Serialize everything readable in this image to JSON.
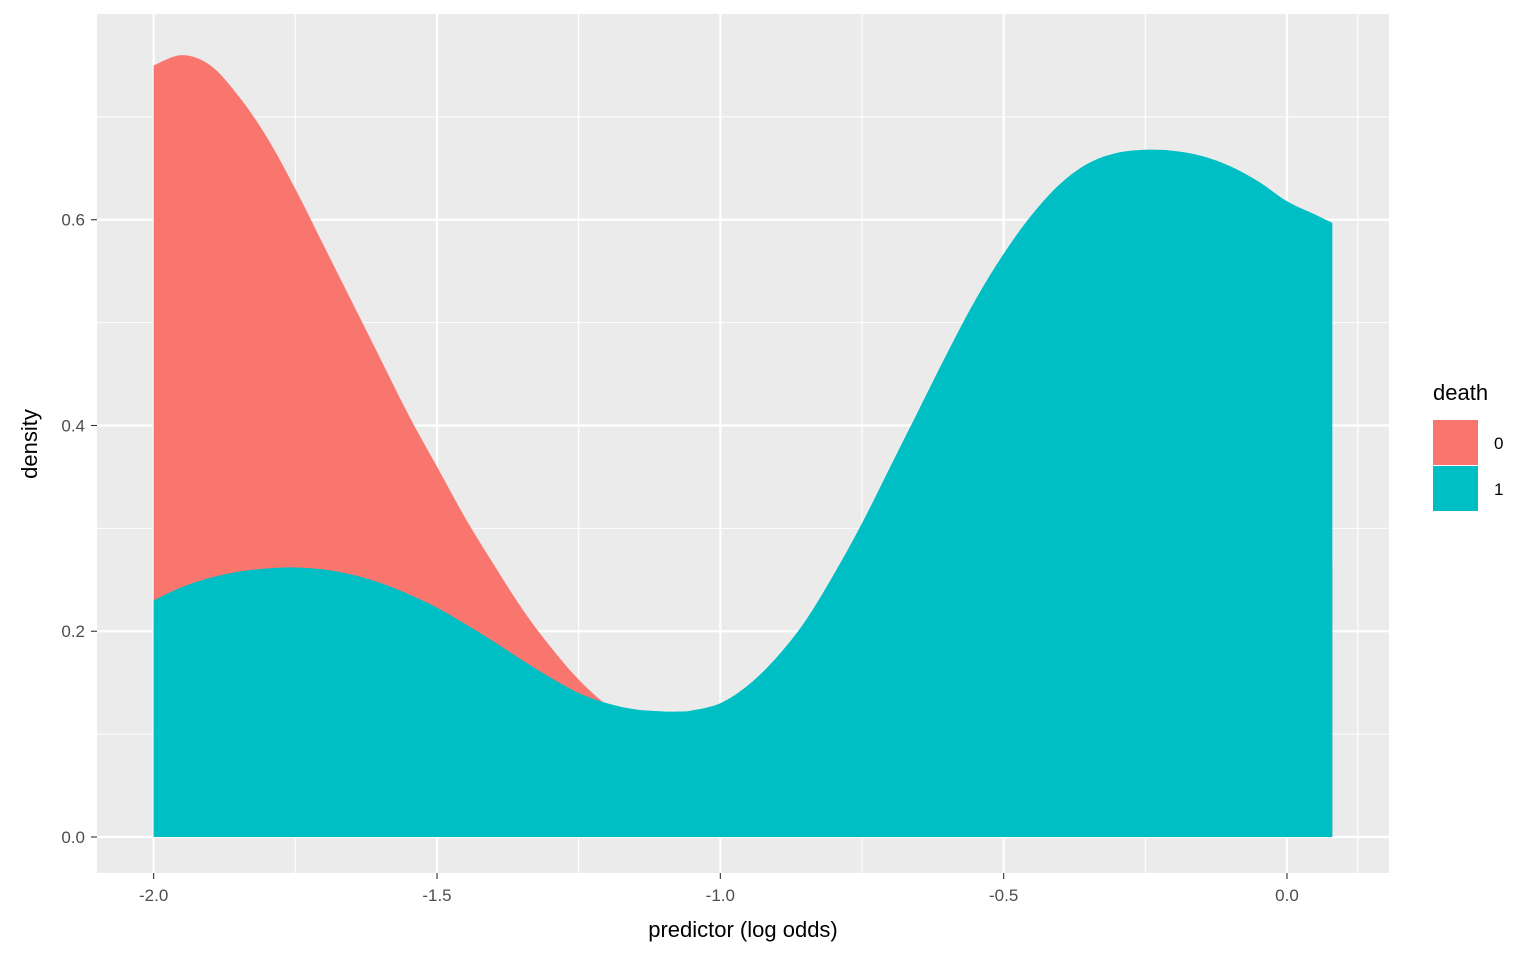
{
  "chart_data": {
    "type": "area",
    "title": "",
    "xlabel": "predictor (log odds)",
    "ylabel": "density",
    "xlim": [
      -2.1,
      0.18
    ],
    "ylim": [
      -0.035,
      0.8
    ],
    "x_ticks": [
      -2.0,
      -1.5,
      -1.0,
      -0.5,
      0.0
    ],
    "x_tick_labels": [
      "-2.0",
      "-1.5",
      "-1.0",
      "-0.5",
      "0.0"
    ],
    "y_ticks": [
      0.0,
      0.2,
      0.4,
      0.6
    ],
    "y_tick_labels": [
      "0.0",
      "0.2",
      "0.4",
      "0.6"
    ],
    "grid": true,
    "stacked": false,
    "legend": {
      "title": "death",
      "position": "right",
      "entries": [
        "0",
        "1"
      ]
    },
    "series": [
      {
        "name": "0",
        "color": "#F8766D",
        "x": [
          -2.0,
          -1.95,
          -1.9,
          -1.85,
          -1.8,
          -1.75,
          -1.7,
          -1.65,
          -1.6,
          -1.55,
          -1.5,
          -1.45,
          -1.4,
          -1.35,
          -1.3,
          -1.25,
          -1.2,
          -1.15,
          -1.1,
          -1.08,
          -1.05,
          -1.0,
          -0.95,
          -0.9,
          -0.85,
          -0.8,
          -0.75,
          -0.7,
          -0.65,
          -0.6,
          -0.55,
          -0.5,
          -0.45,
          -0.4,
          -0.35,
          -0.3,
          -0.25,
          -0.2,
          -0.15,
          -0.1,
          -0.05,
          0.0,
          0.05,
          0.08
        ],
        "y": [
          0.75,
          0.76,
          0.75,
          0.72,
          0.68,
          0.63,
          0.575,
          0.52,
          0.465,
          0.41,
          0.36,
          0.31,
          0.265,
          0.222,
          0.185,
          0.153,
          0.128,
          0.11,
          0.1,
          0.097,
          0.094,
          0.091,
          0.09,
          0.093,
          0.1,
          0.11,
          0.125,
          0.145,
          0.165,
          0.185,
          0.205,
          0.22,
          0.235,
          0.248,
          0.258,
          0.265,
          0.27,
          0.272,
          0.272,
          0.27,
          0.268,
          0.266,
          0.265,
          0.265
        ]
      },
      {
        "name": "1",
        "color": "#00BFC4",
        "x": [
          -2.0,
          -1.95,
          -1.9,
          -1.85,
          -1.8,
          -1.75,
          -1.7,
          -1.65,
          -1.6,
          -1.55,
          -1.5,
          -1.45,
          -1.4,
          -1.35,
          -1.3,
          -1.25,
          -1.2,
          -1.15,
          -1.1,
          -1.075,
          -1.05,
          -1.0,
          -0.95,
          -0.9,
          -0.85,
          -0.8,
          -0.75,
          -0.7,
          -0.65,
          -0.6,
          -0.55,
          -0.5,
          -0.45,
          -0.4,
          -0.35,
          -0.3,
          -0.25,
          -0.2,
          -0.15,
          -0.1,
          -0.05,
          0.0,
          0.05,
          0.08
        ],
        "y": [
          0.23,
          0.243,
          0.252,
          0.258,
          0.261,
          0.262,
          0.26,
          0.255,
          0.247,
          0.236,
          0.223,
          0.207,
          0.19,
          0.172,
          0.155,
          0.14,
          0.13,
          0.124,
          0.122,
          0.122,
          0.123,
          0.13,
          0.148,
          0.175,
          0.21,
          0.255,
          0.305,
          0.36,
          0.415,
          0.47,
          0.522,
          0.567,
          0.605,
          0.635,
          0.655,
          0.665,
          0.668,
          0.667,
          0.662,
          0.652,
          0.637,
          0.618,
          0.605,
          0.597
        ]
      }
    ]
  }
}
